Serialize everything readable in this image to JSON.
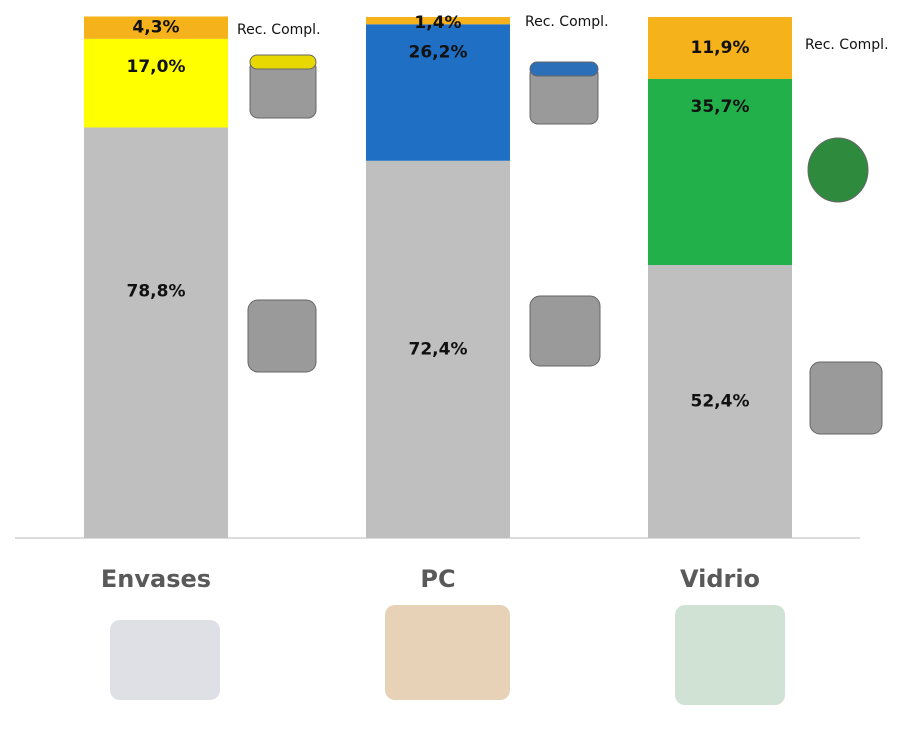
{
  "chart_data": {
    "type": "stacked-bar",
    "categories": [
      "Envases",
      "PC",
      "Vidrio"
    ],
    "ylim": [
      0,
      100
    ],
    "series": [
      {
        "color": "#bfbfbf",
        "values": [
          78.8,
          72.4,
          52.4
        ],
        "value_labels": [
          "78,8%",
          "72,4%",
          "52,4%"
        ]
      },
      {
        "colors": [
          "#ffff00",
          "#1f6fc4",
          "#22b04b"
        ],
        "values": [
          17.0,
          26.2,
          35.7
        ],
        "value_labels": [
          "17,0%",
          "26,2%",
          "35,7%"
        ]
      },
      {
        "name": "Rec. Compl.",
        "color": "#f5b21b",
        "values": [
          4.3,
          1.4,
          11.9
        ],
        "value_labels": [
          "4,3%",
          "1,4%",
          "11,9%"
        ]
      }
    ]
  }
}
